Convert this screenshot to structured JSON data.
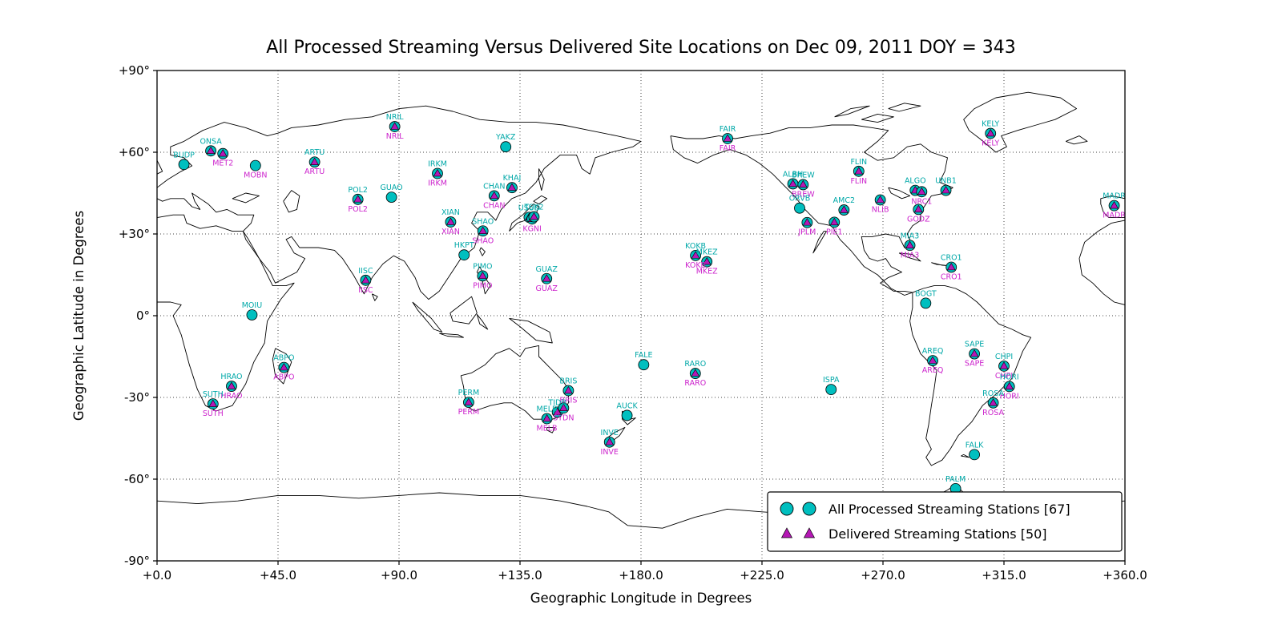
{
  "title": "All Processed Streaming Versus Delivered Site Locations on Dec 09, 2011 DOY = 343",
  "axes": {
    "xlabel": "Geographic Longitude in Degrees",
    "ylabel": "Geographic Latitude in Degrees",
    "x_ticks": [
      "+0.0",
      "+45.0",
      "+90.0",
      "+135.0",
      "+180.0",
      "+225.0",
      "+270.0",
      "+315.0",
      "+360.0"
    ],
    "y_ticks": [
      "+90°",
      "+60°",
      "+30°",
      "0°",
      "-30°",
      "-60°",
      "-90°"
    ]
  },
  "legend": {
    "items": [
      {
        "label": "All Processed Streaming Stations [67]",
        "marker": "circle"
      },
      {
        "label": "Delivered Streaming Stations [50]",
        "marker": "triangle"
      }
    ]
  },
  "colors": {
    "processed": "#00BFBF",
    "delivered": "#B517B5",
    "label_above": "#00A8A8",
    "label_below": "#CC22CC",
    "coastline": "#000000",
    "grid": "#444444"
  },
  "chart_data": {
    "type": "scatter",
    "title": "All Processed Streaming Versus Delivered Site Locations on Dec 09, 2011 DOY = 343",
    "xlabel": "Geographic Longitude in Degrees",
    "ylabel": "Geographic Latitude in Degrees",
    "xlim": [
      0,
      360
    ],
    "ylim": [
      -90,
      90
    ],
    "grid": true,
    "legend_position": "lower right",
    "processed_count": 67,
    "delivered_count": 50,
    "stations": [
      {
        "name": "BUDP",
        "lon": 10.0,
        "lat": 55.5,
        "processed": true,
        "delivered": false,
        "label_above": true,
        "label_below": false
      },
      {
        "name": "ONSA",
        "lon": 20.0,
        "lat": 60.5,
        "processed": true,
        "delivered": true,
        "label_above": true,
        "label_below": false
      },
      {
        "name": "MET2",
        "lon": 24.5,
        "lat": 59.5,
        "processed": true,
        "delivered": true,
        "label_above": false,
        "label_below": true
      },
      {
        "name": "MOBN",
        "lon": 36.6,
        "lat": 55.1,
        "processed": true,
        "delivered": false,
        "label_above": false,
        "label_below": true
      },
      {
        "name": "ARTU",
        "lon": 58.6,
        "lat": 56.4,
        "processed": true,
        "delivered": true,
        "label_above": true,
        "label_below": true
      },
      {
        "name": "NRIL",
        "lon": 88.4,
        "lat": 69.4,
        "processed": true,
        "delivered": true,
        "label_above": true,
        "label_below": true
      },
      {
        "name": "YAKZ",
        "lon": 129.7,
        "lat": 62.0,
        "processed": true,
        "delivered": false,
        "label_above": true,
        "label_below": false
      },
      {
        "name": "IRKM",
        "lon": 104.3,
        "lat": 52.2,
        "processed": true,
        "delivered": true,
        "label_above": true,
        "label_below": true
      },
      {
        "name": "POL2",
        "lon": 74.7,
        "lat": 42.7,
        "processed": true,
        "delivered": true,
        "label_above": true,
        "label_below": true
      },
      {
        "name": "GUAO",
        "lon": 87.2,
        "lat": 43.5,
        "processed": true,
        "delivered": false,
        "label_above": true,
        "label_below": false
      },
      {
        "name": "CHAN",
        "lon": 125.4,
        "lat": 44.0,
        "processed": true,
        "delivered": true,
        "label_above": true,
        "label_below": true
      },
      {
        "name": "KHAJ",
        "lon": 132.0,
        "lat": 47.0,
        "processed": true,
        "delivered": true,
        "label_above": true,
        "label_below": false
      },
      {
        "name": "XIAN",
        "lon": 109.2,
        "lat": 34.4,
        "processed": true,
        "delivered": true,
        "label_above": true,
        "label_below": true
      },
      {
        "name": "SHAO",
        "lon": 121.2,
        "lat": 31.1,
        "processed": true,
        "delivered": true,
        "label_above": true,
        "label_below": true
      },
      {
        "name": "USUD",
        "lon": 138.4,
        "lat": 36.1,
        "processed": true,
        "delivered": true,
        "label_above": true,
        "label_below": false
      },
      {
        "name": "KGNI",
        "lon": 139.5,
        "lat": 35.5,
        "processed": true,
        "delivered": true,
        "label_above": false,
        "label_below": true
      },
      {
        "name": "TSK2",
        "lon": 140.2,
        "lat": 36.3,
        "processed": true,
        "delivered": true,
        "label_above": true,
        "label_below": false
      },
      {
        "name": "HKPT",
        "lon": 114.2,
        "lat": 22.3,
        "processed": true,
        "delivered": false,
        "label_above": true,
        "label_below": false
      },
      {
        "name": "PIMO",
        "lon": 121.1,
        "lat": 14.6,
        "processed": true,
        "delivered": true,
        "label_above": true,
        "label_below": true
      },
      {
        "name": "GUAZ",
        "lon": 144.9,
        "lat": 13.6,
        "processed": true,
        "delivered": true,
        "label_above": true,
        "label_below": true
      },
      {
        "name": "IISC",
        "lon": 77.6,
        "lat": 13.0,
        "processed": true,
        "delivered": true,
        "label_above": true,
        "label_below": true
      },
      {
        "name": "MOIU",
        "lon": 35.3,
        "lat": 0.3,
        "processed": true,
        "delivered": false,
        "label_above": true,
        "label_below": false
      },
      {
        "name": "ABPO",
        "lon": 47.2,
        "lat": -19.0,
        "processed": true,
        "delivered": true,
        "label_above": true,
        "label_below": true
      },
      {
        "name": "HRAO",
        "lon": 27.7,
        "lat": -25.9,
        "processed": true,
        "delivered": true,
        "label_above": true,
        "label_below": true
      },
      {
        "name": "SUTH",
        "lon": 20.8,
        "lat": -32.4,
        "processed": true,
        "delivered": true,
        "label_above": true,
        "label_below": true
      },
      {
        "name": "PERM",
        "lon": 115.9,
        "lat": -31.8,
        "processed": true,
        "delivered": true,
        "label_above": true,
        "label_below": true
      },
      {
        "name": "BRIS",
        "lon": 153.0,
        "lat": -27.5,
        "processed": true,
        "delivered": true,
        "label_above": true,
        "label_below": true
      },
      {
        "name": "TIDB",
        "lon": 148.9,
        "lat": -35.4,
        "processed": true,
        "delivered": true,
        "label_above": true,
        "label_below": false
      },
      {
        "name": "SYDN",
        "lon": 151.2,
        "lat": -33.9,
        "processed": true,
        "delivered": true,
        "label_above": false,
        "label_below": true
      },
      {
        "name": "MELB",
        "lon": 145.0,
        "lat": -37.8,
        "processed": true,
        "delivered": true,
        "label_above": true,
        "label_below": true
      },
      {
        "name": "AUCK",
        "lon": 174.8,
        "lat": -36.6,
        "processed": true,
        "delivered": false,
        "label_above": true,
        "label_below": false
      },
      {
        "name": "INVE",
        "lon": 168.3,
        "lat": -46.4,
        "processed": true,
        "delivered": true,
        "label_above": true,
        "label_below": true
      },
      {
        "name": "FALE",
        "lon": 181.0,
        "lat": -18.0,
        "processed": true,
        "delivered": false,
        "label_above": true,
        "label_below": false
      },
      {
        "name": "RARO",
        "lon": 200.2,
        "lat": -21.2,
        "processed": true,
        "delivered": true,
        "label_above": true,
        "label_below": true
      },
      {
        "name": "ISPA",
        "lon": 250.7,
        "lat": -27.1,
        "processed": true,
        "delivered": false,
        "label_above": true,
        "label_below": false
      },
      {
        "name": "KOKB",
        "lon": 200.3,
        "lat": 22.1,
        "processed": true,
        "delivered": true,
        "label_above": true,
        "label_below": true
      },
      {
        "name": "MKEZ",
        "lon": 204.5,
        "lat": 19.8,
        "processed": true,
        "delivered": true,
        "label_above": true,
        "label_below": true
      },
      {
        "name": "FAIR",
        "lon": 212.2,
        "lat": 65.0,
        "processed": true,
        "delivered": true,
        "label_above": true,
        "label_below": true
      },
      {
        "name": "ALBH",
        "lon": 236.5,
        "lat": 48.4,
        "processed": true,
        "delivered": true,
        "label_above": true,
        "label_below": false
      },
      {
        "name": "BREW",
        "lon": 240.3,
        "lat": 48.1,
        "processed": true,
        "delivered": true,
        "label_above": true,
        "label_below": true
      },
      {
        "name": "ORVB",
        "lon": 239.0,
        "lat": 39.5,
        "processed": true,
        "delivered": false,
        "label_above": true,
        "label_below": false
      },
      {
        "name": "JPLM",
        "lon": 241.8,
        "lat": 34.2,
        "processed": true,
        "delivered": true,
        "label_above": false,
        "label_below": true
      },
      {
        "name": "PIE1",
        "lon": 251.9,
        "lat": 34.3,
        "processed": true,
        "delivered": true,
        "label_above": false,
        "label_below": true
      },
      {
        "name": "AMC2",
        "lon": 255.5,
        "lat": 38.8,
        "processed": true,
        "delivered": true,
        "label_above": true,
        "label_below": false
      },
      {
        "name": "FLIN",
        "lon": 261.0,
        "lat": 53.0,
        "processed": true,
        "delivered": true,
        "label_above": true,
        "label_below": true
      },
      {
        "name": "NLIB",
        "lon": 269.0,
        "lat": 42.5,
        "processed": true,
        "delivered": true,
        "label_above": false,
        "label_below": true
      },
      {
        "name": "ALGO",
        "lon": 282.0,
        "lat": 46.0,
        "processed": true,
        "delivered": true,
        "label_above": true,
        "label_below": false
      },
      {
        "name": "NRC1",
        "lon": 284.4,
        "lat": 45.5,
        "processed": true,
        "delivered": true,
        "label_above": false,
        "label_below": true
      },
      {
        "name": "UNB1",
        "lon": 293.4,
        "lat": 46.0,
        "processed": true,
        "delivered": true,
        "label_above": true,
        "label_below": false
      },
      {
        "name": "GODZ",
        "lon": 283.2,
        "lat": 39.0,
        "processed": true,
        "delivered": true,
        "label_above": false,
        "label_below": true
      },
      {
        "name": "MIA3",
        "lon": 280.0,
        "lat": 25.8,
        "processed": true,
        "delivered": true,
        "label_above": true,
        "label_below": true
      },
      {
        "name": "BOGT",
        "lon": 285.9,
        "lat": 4.6,
        "processed": true,
        "delivered": false,
        "label_above": true,
        "label_below": false
      },
      {
        "name": "CRO1",
        "lon": 295.4,
        "lat": 17.8,
        "processed": true,
        "delivered": true,
        "label_above": true,
        "label_below": true
      },
      {
        "name": "SAPE",
        "lon": 304.0,
        "lat": -14.0,
        "processed": true,
        "delivered": true,
        "label_above": true,
        "label_below": true
      },
      {
        "name": "AREQ",
        "lon": 288.5,
        "lat": -16.5,
        "processed": true,
        "delivered": true,
        "label_above": true,
        "label_below": true
      },
      {
        "name": "CHPI",
        "lon": 315.0,
        "lat": -18.5,
        "processed": true,
        "delivered": true,
        "label_above": true,
        "label_below": true
      },
      {
        "name": "HORI",
        "lon": 317.0,
        "lat": -26.0,
        "processed": true,
        "delivered": true,
        "label_above": true,
        "label_below": true
      },
      {
        "name": "ROSA",
        "lon": 311.0,
        "lat": -32.0,
        "processed": true,
        "delivered": true,
        "label_above": true,
        "label_below": true
      },
      {
        "name": "FALK",
        "lon": 304.0,
        "lat": -51.0,
        "processed": true,
        "delivered": false,
        "label_above": true,
        "label_below": false
      },
      {
        "name": "PALM",
        "lon": 297.0,
        "lat": -63.5,
        "processed": true,
        "delivered": false,
        "label_above": true,
        "label_below": false
      },
      {
        "name": "MADR",
        "lon": 356.0,
        "lat": 40.4,
        "processed": true,
        "delivered": true,
        "label_above": true,
        "label_below": true
      },
      {
        "name": "KELY",
        "lon": 310.0,
        "lat": 66.9,
        "processed": true,
        "delivered": true,
        "label_above": true,
        "label_below": true
      }
    ]
  }
}
